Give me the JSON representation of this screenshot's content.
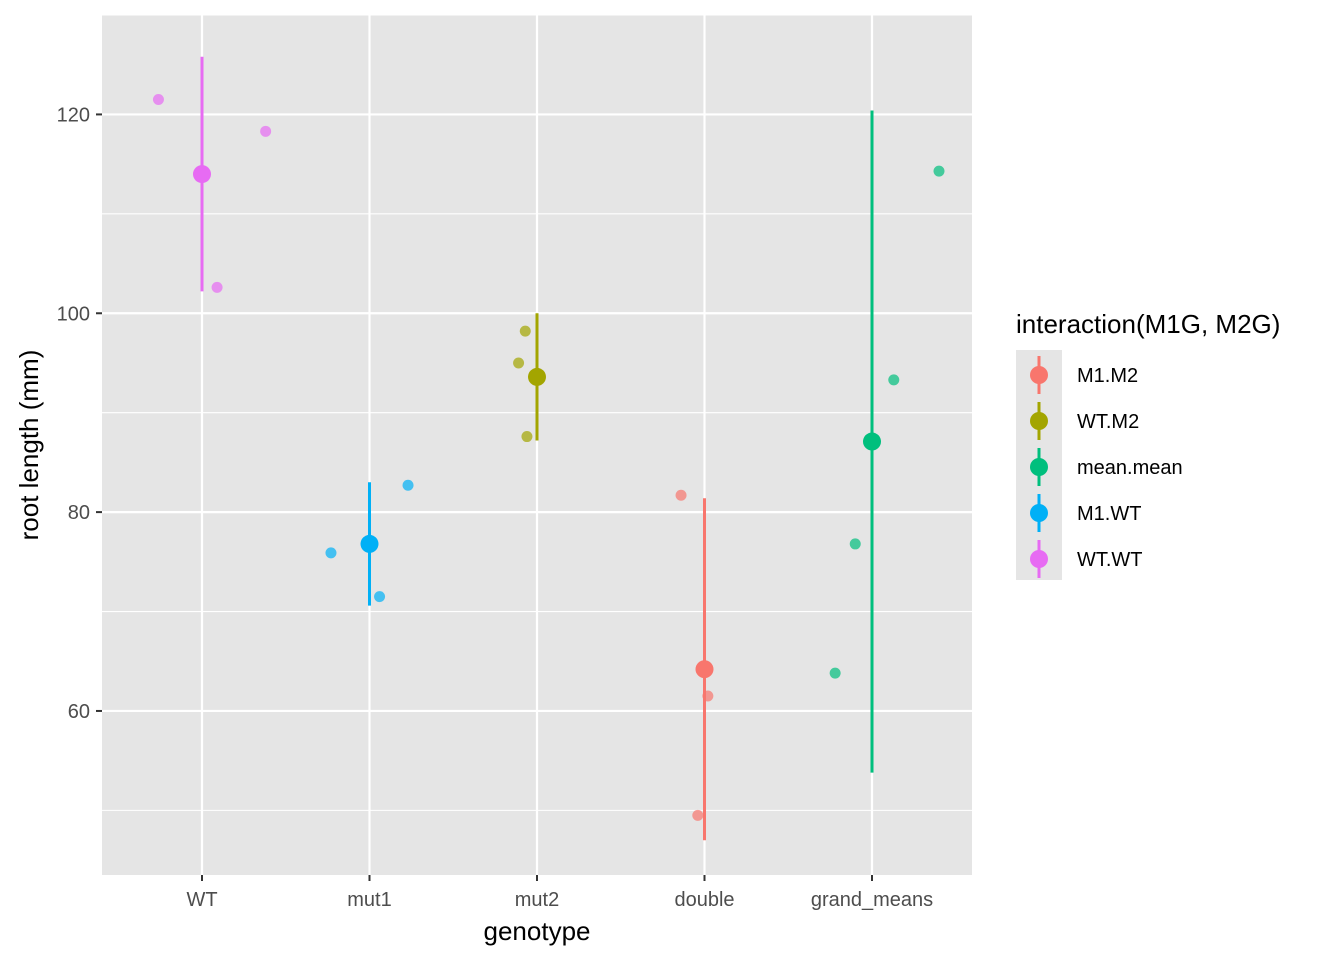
{
  "chart_data": {
    "type": "scatter",
    "xlabel": "genotype",
    "ylabel": "root length (mm)",
    "categories": [
      "WT",
      "mut1",
      "mut2",
      "double",
      "grand_means"
    ],
    "ylim": [
      43.5,
      130
    ],
    "yticks": [
      60,
      80,
      100,
      120
    ],
    "grid": true,
    "legend": {
      "title": "interaction(M1G, M2G)",
      "position": "right",
      "entries": [
        {
          "label": "M1.M2",
          "color": "#F8766D"
        },
        {
          "label": "WT.M2",
          "color": "#A3A500"
        },
        {
          "label": "mean.mean",
          "color": "#00BF7D"
        },
        {
          "label": "M1.WT",
          "color": "#00B0F6"
        },
        {
          "label": "WT.WT",
          "color": "#E76BF3"
        }
      ]
    },
    "series": [
      {
        "name": "WT.WT",
        "color": "#E76BF3",
        "category": "WT",
        "mean": 114.0,
        "range": [
          102.2,
          125.8
        ],
        "points": [
          {
            "jitter": -0.26,
            "y": 121.5
          },
          {
            "jitter": 0.09,
            "y": 102.6
          },
          {
            "jitter": 0.38,
            "y": 118.3
          }
        ]
      },
      {
        "name": "M1.WT",
        "color": "#00B0F6",
        "category": "mut1",
        "mean": 76.8,
        "range": [
          70.6,
          83.0
        ],
        "points": [
          {
            "jitter": -0.23,
            "y": 75.9
          },
          {
            "jitter": 0.06,
            "y": 71.5
          },
          {
            "jitter": 0.23,
            "y": 82.7
          }
        ]
      },
      {
        "name": "WT.M2",
        "color": "#A3A500",
        "category": "mut2",
        "mean": 93.6,
        "range": [
          87.2,
          100.0
        ],
        "points": [
          {
            "jitter": -0.07,
            "y": 98.2
          },
          {
            "jitter": -0.11,
            "y": 95.0
          },
          {
            "jitter": -0.06,
            "y": 87.6
          }
        ]
      },
      {
        "name": "M1.M2",
        "color": "#F8766D",
        "category": "double",
        "mean": 64.2,
        "range": [
          47.0,
          81.4
        ],
        "points": [
          {
            "jitter": -0.14,
            "y": 81.7
          },
          {
            "jitter": 0.02,
            "y": 61.5
          },
          {
            "jitter": -0.04,
            "y": 49.5
          }
        ]
      },
      {
        "name": "mean.mean",
        "color": "#00BF7D",
        "category": "grand_means",
        "mean": 87.1,
        "range": [
          53.8,
          120.4
        ],
        "points": [
          {
            "jitter": -0.22,
            "y": 63.8
          },
          {
            "jitter": -0.1,
            "y": 76.8
          },
          {
            "jitter": 0.13,
            "y": 93.3
          },
          {
            "jitter": 0.4,
            "y": 114.3
          }
        ]
      }
    ]
  }
}
